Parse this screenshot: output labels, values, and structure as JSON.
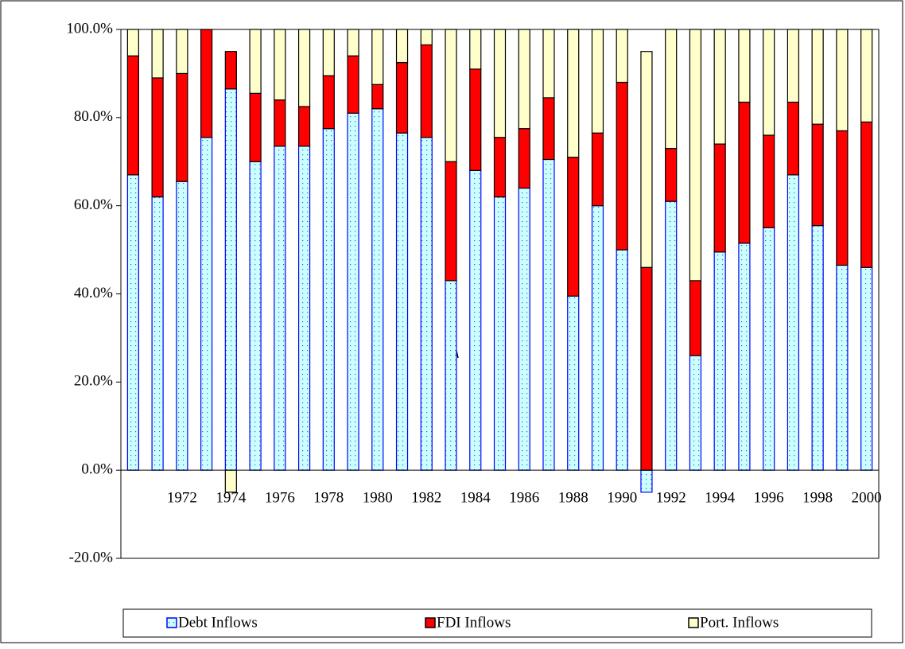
{
  "chart_data": {
    "type": "stacked-bar",
    "categories": [
      null,
      null,
      "1972",
      null,
      "1974",
      null,
      "1976",
      null,
      "1978",
      null,
      "1980",
      null,
      "1982",
      null,
      "1984",
      null,
      "1986",
      null,
      "1988",
      null,
      "1990",
      null,
      "1992",
      null,
      "1994",
      null,
      "1996",
      null,
      "1998",
      null,
      "2000"
    ],
    "series": [
      {
        "name": "Debt Inflows",
        "color": "#ccffff",
        "values": [
          67,
          62,
          65.5,
          75.5,
          86.5,
          70,
          73.5,
          73.5,
          77.5,
          81,
          82,
          76.5,
          75.5,
          43,
          68,
          62,
          64,
          70.5,
          39.5,
          60,
          50,
          -5,
          61,
          26,
          49.5,
          51.5,
          55,
          67,
          55.5,
          46.5,
          46
        ]
      },
      {
        "name": "FDI Inflows",
        "color": "#ff0000",
        "values": [
          27,
          27,
          24.5,
          24.5,
          8.5,
          15.5,
          10.5,
          9,
          12,
          13,
          5.5,
          16,
          21,
          27,
          23,
          13.5,
          13.5,
          14,
          31.5,
          16.5,
          38,
          46,
          12,
          17,
          24.5,
          32,
          21,
          16.5,
          23,
          30.5,
          33
        ]
      },
      {
        "name": "Port. Inflows",
        "color": "#ffffcc",
        "values": [
          6,
          11,
          10,
          0,
          -5,
          14.5,
          16,
          17.5,
          10.5,
          6,
          12.5,
          7.5,
          3.5,
          30,
          9,
          24.5,
          22.5,
          15.5,
          29,
          23.5,
          12,
          49,
          27,
          57,
          26,
          16.5,
          24,
          16.5,
          21.5,
          23,
          21
        ]
      }
    ],
    "ylim": [
      -20,
      100
    ],
    "yticks": [
      {
        "value": -20,
        "label": "-20.0%"
      },
      {
        "value": 0,
        "label": "0.0%"
      },
      {
        "value": 20,
        "label": "20.0%"
      },
      {
        "value": 40,
        "label": "40.0%"
      },
      {
        "value": 60,
        "label": "60.0%"
      },
      {
        "value": 80,
        "label": "80.0%"
      },
      {
        "value": 100,
        "label": "100.0%"
      }
    ],
    "legend": "bottom"
  }
}
